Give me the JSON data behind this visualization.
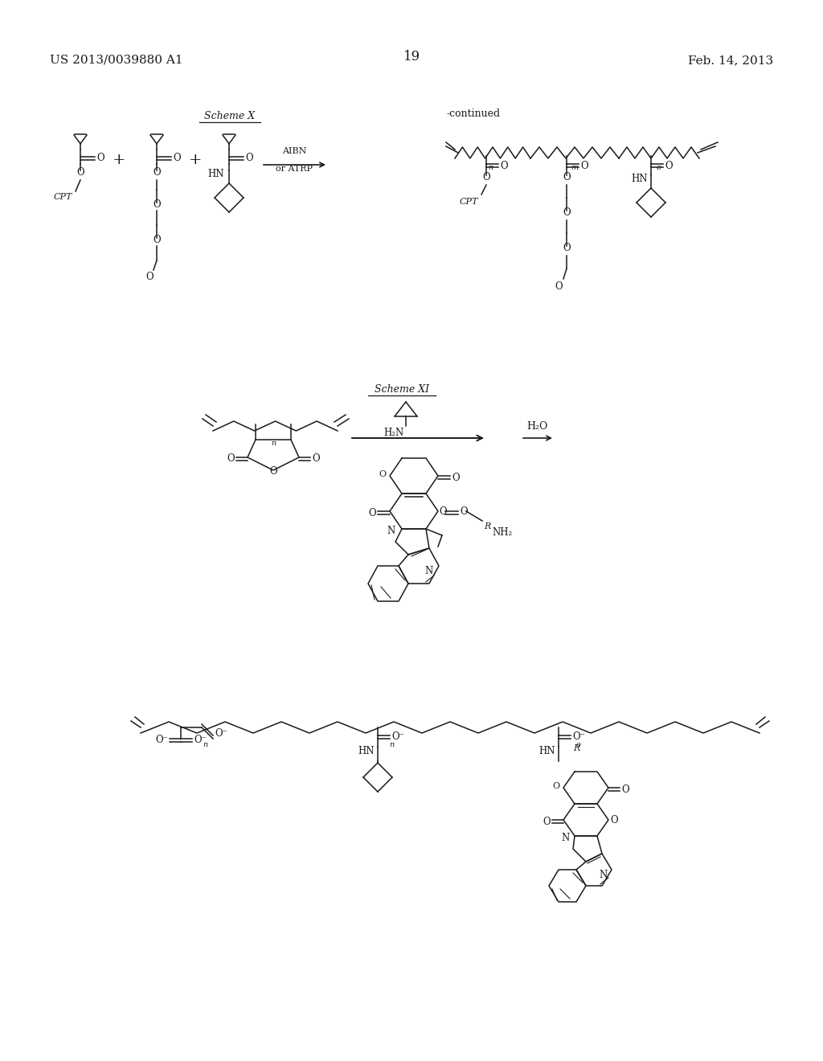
{
  "page_number": "19",
  "patent_number": "US 2013/0039880 A1",
  "patent_date": "Feb. 14, 2013",
  "background_color": "#ffffff",
  "text_color": "#1a1a1a",
  "figsize": [
    10.24,
    13.2
  ],
  "dpi": 100
}
